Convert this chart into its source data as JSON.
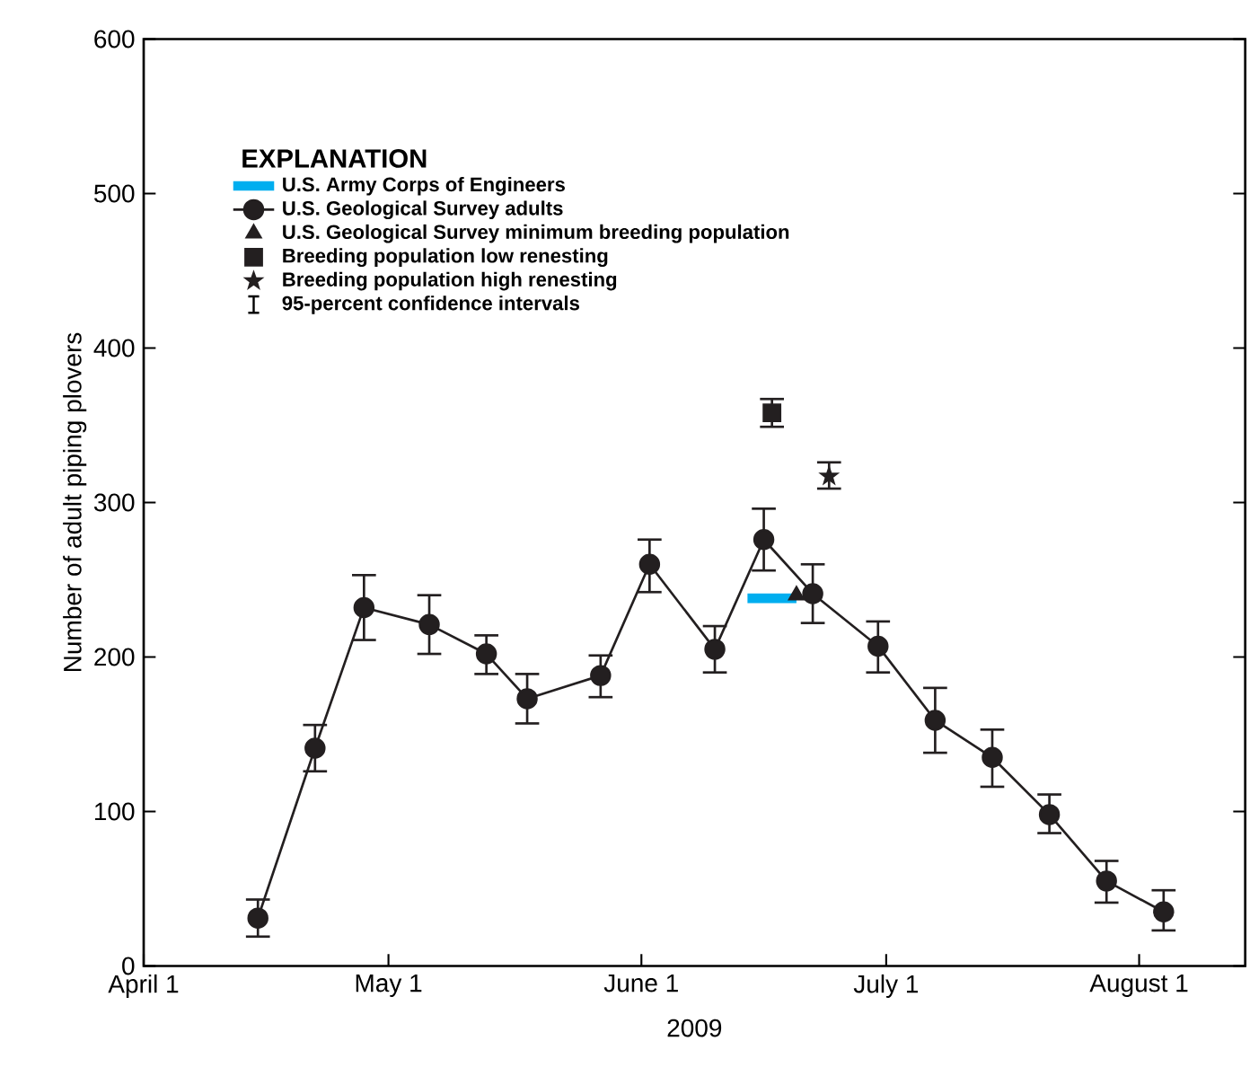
{
  "chart_data": {
    "type": "line",
    "xlabel": "2009",
    "ylabel": "Number of adult piping plovers",
    "legend_title": "EXPLANATION",
    "xlim": [
      "2009-04-01",
      "2009-08-14"
    ],
    "xticks": [
      {
        "value": "2009-04-01",
        "label": "April 1"
      },
      {
        "value": "2009-05-01",
        "label": "May 1"
      },
      {
        "value": "2009-06-01",
        "label": "June 1"
      },
      {
        "value": "2009-07-01",
        "label": "July 1"
      },
      {
        "value": "2009-08-01",
        "label": "August 1"
      }
    ],
    "ylim": [
      0,
      600
    ],
    "yticks": [
      0,
      100,
      200,
      300,
      400,
      500,
      600
    ],
    "legend": "top left",
    "annotations": [
      "95-percent confidence intervals"
    ],
    "series": [
      {
        "name": "U.S. Army Corps of Engineers",
        "type": "line",
        "color": "#00aeef",
        "marker": "none",
        "x": [
          "2009-06-14",
          "2009-06-20"
        ],
        "values": [
          238,
          238
        ]
      },
      {
        "name": "U.S. Geological Survey adults",
        "type": "line",
        "color": "#231f20",
        "marker": "circle",
        "x": [
          "2009-04-15",
          "2009-04-22",
          "2009-04-28",
          "2009-05-06",
          "2009-05-13",
          "2009-05-18",
          "2009-05-27",
          "2009-06-02",
          "2009-06-10",
          "2009-06-16",
          "2009-06-22",
          "2009-06-30",
          "2009-07-07",
          "2009-07-14",
          "2009-07-21",
          "2009-07-28",
          "2009-08-04"
        ],
        "values": [
          31,
          141,
          232,
          221,
          202,
          173,
          188,
          260,
          205,
          276,
          241,
          207,
          159,
          135,
          98,
          55,
          35
        ],
        "errors": [
          [
            19,
            43
          ],
          [
            126,
            156
          ],
          [
            211,
            253
          ],
          [
            202,
            240
          ],
          [
            189,
            214
          ],
          [
            157,
            189
          ],
          [
            174,
            201
          ],
          [
            242,
            276
          ],
          [
            190,
            220
          ],
          [
            256,
            296
          ],
          [
            222,
            260
          ],
          [
            190,
            223
          ],
          [
            138,
            180
          ],
          [
            116,
            153
          ],
          [
            86,
            111
          ],
          [
            41,
            68
          ],
          [
            23,
            49
          ]
        ]
      },
      {
        "name": "U.S. Geological Survey minimum breeding population",
        "type": "scatter",
        "color": "#231f20",
        "marker": "triangle",
        "x": [
          "2009-06-20"
        ],
        "values": [
          240
        ]
      },
      {
        "name": "Breeding population low renesting",
        "type": "scatter",
        "color": "#231f20",
        "marker": "square",
        "x": [
          "2009-06-17"
        ],
        "values": [
          358
        ],
        "errors": [
          [
            349,
            367
          ]
        ]
      },
      {
        "name": "Breeding population high renesting",
        "type": "scatter",
        "color": "#231f20",
        "marker": "star",
        "x": [
          "2009-06-24"
        ],
        "values": [
          317
        ],
        "errors": [
          [
            309,
            326
          ]
        ]
      }
    ]
  }
}
